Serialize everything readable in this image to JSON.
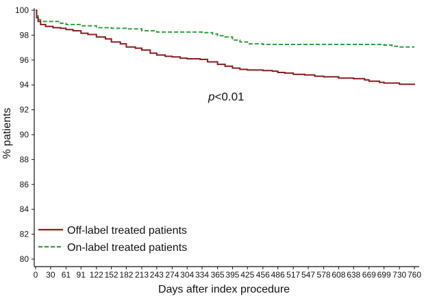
{
  "chart_data": {
    "type": "line",
    "title": "",
    "xlabel": "Days after index procedure",
    "ylabel": "% patients",
    "xlim": [
      0,
      760
    ],
    "ylim": [
      80,
      100
    ],
    "x_ticks": [
      0,
      30,
      61,
      91,
      122,
      152,
      182,
      213,
      243,
      274,
      304,
      334,
      365,
      395,
      425,
      456,
      486,
      517,
      547,
      578,
      608,
      638,
      669,
      699,
      730,
      760
    ],
    "y_ticks": [
      80,
      82,
      84,
      86,
      88,
      90,
      92,
      94,
      96,
      98,
      100
    ],
    "grid": false,
    "legend_position": "bottom-left",
    "annotation": {
      "prefix": "p",
      "text": "<0.01"
    },
    "series": [
      {
        "name": "Off-label treated patients",
        "color": "#8b1a1a",
        "style": "solid",
        "x": [
          0,
          2,
          5,
          10,
          20,
          35,
          50,
          61,
          75,
          91,
          105,
          122,
          140,
          152,
          170,
          182,
          200,
          213,
          230,
          243,
          260,
          274,
          290,
          304,
          330,
          345,
          365,
          380,
          395,
          410,
          425,
          456,
          475,
          486,
          500,
          517,
          540,
          560,
          578,
          608,
          638,
          660,
          669,
          690,
          699,
          730,
          760
        ],
        "y": [
          100,
          99.4,
          99.1,
          98.85,
          98.7,
          98.6,
          98.55,
          98.45,
          98.35,
          98.15,
          98.05,
          97.85,
          97.7,
          97.45,
          97.3,
          97.05,
          96.95,
          96.8,
          96.55,
          96.4,
          96.3,
          96.25,
          96.15,
          96.1,
          96.05,
          95.85,
          95.65,
          95.5,
          95.35,
          95.25,
          95.2,
          95.15,
          95.1,
          95.0,
          94.95,
          94.85,
          94.8,
          94.7,
          94.65,
          94.55,
          94.5,
          94.4,
          94.3,
          94.2,
          94.15,
          94.05,
          94.0
        ]
      },
      {
        "name": "On-label treated patients",
        "color": "#2e9e3e",
        "style": "dashed",
        "x": [
          0,
          2,
          5,
          10,
          20,
          30,
          50,
          61,
          91,
          122,
          152,
          182,
          213,
          243,
          274,
          304,
          334,
          355,
          365,
          380,
          395,
          410,
          425,
          456,
          486,
          517,
          547,
          578,
          608,
          638,
          669,
          699,
          715,
          730,
          760
        ],
        "y": [
          100,
          99.55,
          99.25,
          99.1,
          99.1,
          99.1,
          98.95,
          98.85,
          98.75,
          98.6,
          98.55,
          98.5,
          98.35,
          98.25,
          98.25,
          98.25,
          98.2,
          98.1,
          97.95,
          97.85,
          97.6,
          97.45,
          97.3,
          97.25,
          97.25,
          97.25,
          97.25,
          97.25,
          97.25,
          97.25,
          97.25,
          97.2,
          97.1,
          97.05,
          97.05
        ]
      }
    ]
  }
}
